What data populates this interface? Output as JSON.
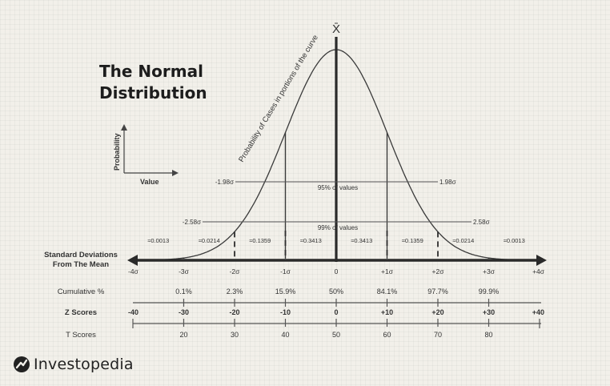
{
  "title": {
    "line1": "The Normal",
    "line2": "Distribution"
  },
  "brand": {
    "name": "Investopedia",
    "logo_icon": "investopedia-logo-icon"
  },
  "mean_symbol": "X̄",
  "curve_caption": "Probability of Cases in portions of the curve",
  "legend_axes": {
    "y_label": "Probability",
    "x_label": "Value"
  },
  "confidence_lines": {
    "inner": {
      "left": "-1.98σ",
      "right": "1.98σ",
      "label": "95% of values"
    },
    "outer": {
      "left": "-2.58σ",
      "right": "2.58σ",
      "label": "99% of values"
    }
  },
  "segment_probs": [
    "≈0.0013",
    "≈0.0214",
    "≈0.1359",
    "≈0.3413",
    "≈0.3413",
    "≈0.1359",
    "≈0.0214",
    "≈0.0013"
  ],
  "std_dev": {
    "label_line1": "Standard Deviations",
    "label_line2": "From The Mean",
    "ticks": [
      "-4σ",
      "-3σ",
      "-2σ",
      "-1σ",
      "0",
      "+1σ",
      "+2σ",
      "+3σ",
      "+4σ"
    ]
  },
  "cumulative": {
    "label": "Cumulative %",
    "values": [
      "0.1%",
      "2.3%",
      "15.9%",
      "50%",
      "84.1%",
      "97.7%",
      "99.9%"
    ]
  },
  "z_scores": {
    "label": "Z Scores",
    "values": [
      "-40",
      "-30",
      "-20",
      "-10",
      "0",
      "+10",
      "+20",
      "+30",
      "+40"
    ]
  },
  "t_scores": {
    "label": "T Scores",
    "values": [
      "20",
      "30",
      "40",
      "50",
      "60",
      "70",
      "80"
    ]
  },
  "colors": {
    "ink": "#2b2b2b",
    "grid": "#e6e3dc",
    "background": "#f2f0ea"
  }
}
